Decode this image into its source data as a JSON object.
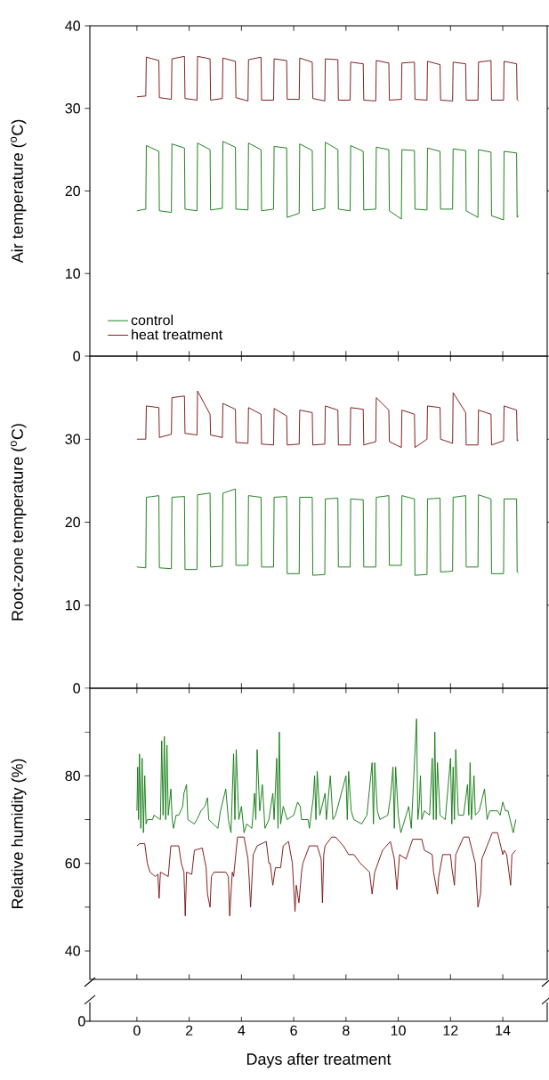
{
  "chart_data": [
    {
      "type": "line",
      "ylabel": "Air temperature ($^{o}$C)",
      "xlim": [
        -1.8,
        15.7
      ],
      "xticks": [
        0,
        2,
        4,
        6,
        8,
        10,
        12,
        14
      ],
      "ylim": [
        0,
        40
      ],
      "yticks": [
        0,
        10,
        20,
        30,
        40
      ],
      "tick_labels": "y",
      "legend": "bottom left",
      "series": [
        {
          "name": "control",
          "color": "#117a11",
          "x": [
            0,
            0.34,
            0.36,
            0.84,
            0.86,
            1.32,
            1.34,
            1.82,
            1.84,
            2.3,
            2.32,
            2.8,
            2.82,
            3.27,
            3.29,
            3.77,
            3.79,
            4.25,
            4.27,
            4.75,
            4.77,
            5.23,
            5.25,
            5.73,
            5.75,
            6.21,
            6.23,
            6.71,
            6.73,
            7.19,
            7.21,
            7.69,
            7.71,
            8.16,
            8.18,
            8.66,
            8.68,
            9.14,
            9.16,
            9.64,
            9.66,
            10.12,
            10.14,
            10.62,
            10.64,
            11.1,
            11.12,
            11.6,
            11.62,
            12.08,
            12.1,
            12.58,
            12.6,
            13.05,
            13.07,
            13.55,
            13.57,
            14.03,
            14.05,
            14.53,
            14.55,
            14.6
          ],
          "values": [
            17.6,
            17.8,
            25.5,
            24.8,
            17.6,
            17.4,
            25.7,
            25.2,
            17.8,
            17.6,
            25.8,
            25.0,
            17.7,
            17.9,
            26.0,
            25.3,
            17.8,
            17.7,
            25.8,
            25.0,
            17.6,
            17.8,
            25.4,
            25.2,
            16.8,
            17.3,
            25.7,
            24.9,
            17.6,
            17.9,
            25.9,
            25.0,
            17.8,
            17.6,
            25.5,
            24.8,
            17.7,
            17.8,
            25.3,
            25.0,
            17.6,
            16.6,
            25.0,
            24.9,
            17.8,
            17.7,
            25.2,
            24.8,
            17.8,
            17.8,
            25.1,
            24.9,
            17.6,
            16.8,
            25.0,
            24.7,
            17.0,
            16.5,
            24.8,
            24.6,
            16.8,
            17.0
          ]
        },
        {
          "name": "heat treatment",
          "color": "#7b1010",
          "x": [
            0,
            0.34,
            0.36,
            0.84,
            0.86,
            1.32,
            1.34,
            1.82,
            1.84,
            2.3,
            2.32,
            2.8,
            2.82,
            3.27,
            3.29,
            3.77,
            3.79,
            4.25,
            4.27,
            4.75,
            4.77,
            5.23,
            5.25,
            5.73,
            5.75,
            6.21,
            6.23,
            6.71,
            6.73,
            7.19,
            7.21,
            7.69,
            7.71,
            8.16,
            8.18,
            8.66,
            8.68,
            9.14,
            9.16,
            9.64,
            9.66,
            10.12,
            10.14,
            10.62,
            10.64,
            11.1,
            11.12,
            11.6,
            11.62,
            12.08,
            12.1,
            12.58,
            12.6,
            13.05,
            13.07,
            13.55,
            13.57,
            14.03,
            14.05,
            14.53,
            14.55,
            14.6
          ],
          "values": [
            31.4,
            31.5,
            36.2,
            35.8,
            31.3,
            31.1,
            36.0,
            36.3,
            31.2,
            31.0,
            36.3,
            36.0,
            31.0,
            31.2,
            36.1,
            35.7,
            31.3,
            30.9,
            35.9,
            36.2,
            31.0,
            31.0,
            36.0,
            35.8,
            31.1,
            31.1,
            36.1,
            35.6,
            31.2,
            30.9,
            36.0,
            35.9,
            31.0,
            31.0,
            35.6,
            35.4,
            31.0,
            30.9,
            35.8,
            35.5,
            31.0,
            31.1,
            35.5,
            35.6,
            31.1,
            31.0,
            35.7,
            35.3,
            31.0,
            30.9,
            35.6,
            35.4,
            31.0,
            31.0,
            35.6,
            35.8,
            31.0,
            31.0,
            35.7,
            35.4,
            31.1,
            30.9
          ]
        }
      ]
    },
    {
      "type": "line",
      "ylabel": "Root-zone temperature ($^{o}$C)",
      "xlim": [
        -1.8,
        15.7
      ],
      "xticks": [
        0,
        2,
        4,
        6,
        8,
        10,
        12,
        14
      ],
      "ylim": [
        0,
        40
      ],
      "yticks": [
        0,
        10,
        20,
        30
      ],
      "tick_labels": "y",
      "series": [
        {
          "color": "#117a11",
          "x": [
            0,
            0.34,
            0.36,
            0.84,
            0.86,
            1.32,
            1.34,
            1.82,
            1.84,
            2.3,
            2.32,
            2.8,
            2.82,
            3.27,
            3.29,
            3.77,
            3.79,
            4.25,
            4.27,
            4.75,
            4.77,
            5.23,
            5.25,
            5.73,
            5.75,
            6.21,
            6.23,
            6.71,
            6.73,
            7.19,
            7.21,
            7.69,
            7.71,
            8.16,
            8.18,
            8.66,
            8.68,
            9.14,
            9.16,
            9.64,
            9.66,
            10.12,
            10.14,
            10.62,
            10.64,
            11.1,
            11.12,
            11.6,
            11.62,
            12.08,
            12.1,
            12.58,
            12.6,
            13.05,
            13.07,
            13.55,
            13.57,
            14.03,
            14.05,
            14.53,
            14.55,
            14.6
          ],
          "values": [
            14.6,
            14.5,
            23.0,
            23.2,
            14.5,
            14.4,
            23.0,
            23.1,
            14.3,
            14.3,
            23.3,
            23.5,
            14.6,
            14.7,
            23.5,
            24.0,
            14.8,
            14.8,
            23.2,
            23.0,
            14.6,
            14.6,
            23.0,
            23.1,
            13.8,
            13.8,
            23.0,
            23.0,
            13.6,
            13.7,
            22.8,
            22.9,
            14.6,
            14.6,
            22.8,
            22.7,
            14.6,
            14.6,
            23.0,
            23.2,
            14.8,
            14.8,
            23.2,
            22.8,
            13.6,
            13.7,
            22.8,
            22.9,
            14.0,
            14.1,
            23.0,
            23.2,
            14.6,
            14.6,
            23.3,
            22.8,
            13.8,
            13.8,
            22.8,
            22.8,
            14.0,
            13.9
          ]
        },
        {
          "color": "#7b1010",
          "x": [
            0,
            0.34,
            0.36,
            0.84,
            0.86,
            1.32,
            1.34,
            1.82,
            1.84,
            2.3,
            2.32,
            2.8,
            2.82,
            3.27,
            3.29,
            3.77,
            3.79,
            4.25,
            4.27,
            4.75,
            4.77,
            5.23,
            5.25,
            5.73,
            5.75,
            6.21,
            6.23,
            6.71,
            6.73,
            7.19,
            7.21,
            7.69,
            7.71,
            8.16,
            8.18,
            8.66,
            8.68,
            9.14,
            9.16,
            9.64,
            9.66,
            10.12,
            10.14,
            10.62,
            10.64,
            11.1,
            11.12,
            11.6,
            11.62,
            12.08,
            12.1,
            12.58,
            12.6,
            13.05,
            13.07,
            13.55,
            13.57,
            14.03,
            14.05,
            14.53,
            14.55,
            14.6
          ],
          "values": [
            30.0,
            30.0,
            34.0,
            33.8,
            30.2,
            30.6,
            35.0,
            35.2,
            30.7,
            30.5,
            35.8,
            33.0,
            30.5,
            30.2,
            34.3,
            33.6,
            29.6,
            29.5,
            33.8,
            33.0,
            29.4,
            29.3,
            33.7,
            32.8,
            29.3,
            29.4,
            33.5,
            33.2,
            29.3,
            29.4,
            34.0,
            33.5,
            29.3,
            29.3,
            33.8,
            33.6,
            29.3,
            29.7,
            35.0,
            33.5,
            29.7,
            29.0,
            33.5,
            33.0,
            29.0,
            30.0,
            34.0,
            33.8,
            30.0,
            29.5,
            35.6,
            33.2,
            29.3,
            29.3,
            33.5,
            33.0,
            29.3,
            29.8,
            34.0,
            33.5,
            29.8,
            29.9
          ]
        }
      ]
    },
    {
      "type": "line",
      "ylabel": "Relative humidity (%)",
      "xlabel": "Days after treatment",
      "annotations": [
        "0"
      ],
      "xlim": [
        -1.8,
        15.7
      ],
      "xticks": [
        0,
        2,
        4,
        6,
        8,
        10,
        12,
        14
      ],
      "ylim": [
        33.5,
        100
      ],
      "yticks": [
        40,
        {
          "value": 50,
          "label": null
        },
        60,
        {
          "value": 70,
          "label": null
        },
        80,
        {
          "value": 90,
          "label": null
        }
      ],
      "series": [
        {
          "color": "#117a11",
          "x": [
            0,
            0.03,
            0.06,
            0.1,
            0.15,
            0.2,
            0.25,
            0.3,
            0.35,
            0.4,
            0.6,
            0.65,
            0.9,
            0.95,
            1.0,
            1.05,
            1.1,
            1.15,
            1.2,
            1.3,
            1.35,
            1.4,
            1.5,
            1.6,
            1.75,
            1.8,
            1.9,
            1.95,
            2.2,
            2.3,
            2.45,
            2.6,
            2.7,
            2.75,
            3.1,
            3.2,
            3.4,
            3.5,
            3.6,
            3.7,
            3.75,
            3.8,
            3.9,
            4.0,
            4.1,
            4.2,
            4.4,
            4.5,
            4.55,
            4.6,
            4.7,
            4.8,
            4.9,
            5.05,
            5.2,
            5.25,
            5.35,
            5.4,
            5.45,
            5.5,
            5.6,
            5.75,
            6.0,
            6.15,
            6.25,
            6.3,
            6.55,
            6.6,
            6.75,
            6.8,
            6.85,
            6.9,
            7.0,
            7.2,
            7.25,
            7.4,
            7.5,
            7.6,
            8.0,
            8.05,
            8.1,
            8.2,
            8.3,
            8.6,
            8.8,
            9.0,
            9.05,
            9.1,
            9.2,
            9.3,
            9.6,
            9.7,
            9.8,
            9.85,
            9.9,
            10.0,
            10.1,
            10.4,
            10.5,
            10.7,
            10.75,
            10.8,
            10.85,
            10.9,
            11.0,
            11.2,
            11.3,
            11.35,
            11.4,
            11.45,
            11.5,
            11.6,
            11.8,
            12.0,
            12.05,
            12.1,
            12.15,
            12.2,
            12.3,
            12.5,
            12.65,
            12.7,
            12.75,
            12.8,
            12.9,
            12.95,
            13.1,
            13.3,
            13.4,
            13.5,
            13.8,
            13.9,
            14.0,
            14.1,
            14.2,
            14.4,
            14.5
          ],
          "values": [
            72,
            82,
            70,
            85,
            68,
            84,
            67,
            80,
            69,
            70,
            70,
            71,
            70,
            88,
            71,
            89,
            70,
            87,
            71,
            77,
            70,
            68,
            71,
            71,
            73,
            76,
            78,
            70,
            69,
            70,
            72,
            73,
            75,
            70,
            68,
            72,
            77,
            70,
            67,
            85,
            70,
            86,
            70,
            73,
            67,
            69,
            68,
            76,
            70,
            86,
            72,
            78,
            68,
            70,
            76,
            70,
            84,
            68,
            90,
            69,
            73,
            70,
            71,
            74,
            73,
            70,
            70,
            68,
            75,
            80,
            70,
            81,
            71,
            76,
            70,
            80,
            70,
            71,
            80,
            70,
            81,
            72,
            70,
            69,
            71,
            83,
            69,
            83,
            72,
            70,
            71,
            75,
            82,
            68,
            82,
            71,
            67,
            73,
            68,
            93,
            70,
            73,
            80,
            70,
            72,
            71,
            84,
            70,
            90,
            70,
            83,
            71,
            70,
            84,
            69,
            82,
            70,
            86,
            71,
            71,
            78,
            71,
            83,
            70,
            80,
            71,
            72,
            77,
            70,
            72,
            72,
            71,
            74,
            72,
            72,
            67,
            70
          ]
        },
        {
          "color": "#7b1010",
          "x": [
            0,
            0.1,
            0.3,
            0.4,
            0.5,
            0.7,
            0.8,
            0.85,
            0.9,
            1.2,
            1.3,
            1.6,
            1.7,
            1.8,
            1.85,
            1.9,
            2.1,
            2.2,
            2.5,
            2.65,
            2.7,
            2.8,
            2.85,
            2.95,
            3.3,
            3.4,
            3.5,
            3.55,
            3.65,
            3.7,
            3.85,
            4.1,
            4.25,
            4.3,
            4.35,
            4.45,
            4.6,
            4.95,
            5.05,
            5.1,
            5.2,
            5.3,
            5.5,
            5.6,
            5.8,
            5.95,
            6.05,
            6.1,
            6.2,
            6.3,
            6.35,
            6.6,
            6.9,
            7.05,
            7.1,
            7.15,
            7.2,
            7.45,
            7.6,
            7.9,
            8.0,
            8.1,
            8.3,
            8.55,
            8.9,
            9.0,
            9.1,
            9.4,
            9.7,
            9.85,
            9.95,
            10.05,
            10.3,
            10.55,
            10.9,
            11.0,
            11.3,
            11.35,
            11.5,
            11.55,
            11.7,
            12.0,
            12.05,
            12.15,
            12.2,
            12.5,
            12.7,
            12.95,
            13.05,
            13.15,
            13.2,
            13.6,
            13.8,
            14.0,
            14.05,
            14.15,
            14.3,
            14.35,
            14.5
          ],
          "values": [
            64,
            64.5,
            64.5,
            60,
            58,
            57,
            57.5,
            52,
            58,
            57,
            64,
            64,
            60,
            58,
            48,
            58,
            57.5,
            63,
            63.5,
            59,
            53,
            50,
            57,
            58,
            58,
            58,
            57,
            48,
            58,
            57,
            66,
            66,
            61,
            56,
            50,
            62,
            64,
            65,
            60,
            60,
            55,
            59,
            59,
            64,
            65,
            60,
            49,
            55,
            51,
            58,
            60,
            64,
            64,
            61,
            51,
            62,
            64,
            66,
            66,
            64,
            63,
            62,
            62,
            60,
            58,
            53,
            58,
            63,
            65,
            61,
            54,
            62,
            61,
            65.5,
            65.5,
            63,
            62,
            58,
            53,
            57,
            62,
            62,
            59,
            55,
            62,
            66,
            66,
            60,
            50,
            53,
            61,
            67,
            67,
            62,
            63,
            62,
            55,
            62,
            63
          ]
        }
      ]
    }
  ]
}
